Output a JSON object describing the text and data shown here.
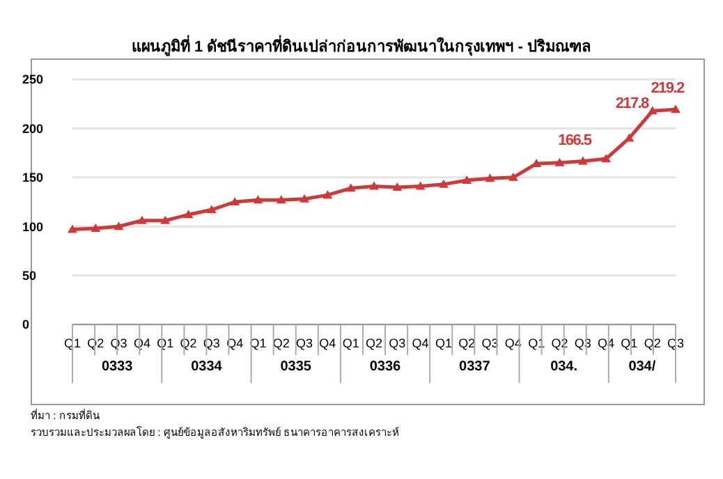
{
  "chart_data": {
    "type": "line",
    "title": "แผนภูมิที่ 1 ดัชนีราคาที่ดินเปล่าก่อนการพัฒนาในกรุงเทพฯ - ปริมณฑล",
    "categories": [
      "Q1",
      "Q2",
      "Q3",
      "Q4",
      "Q1",
      "Q2",
      "Q3",
      "Q4",
      "Q1",
      "Q2",
      "Q3",
      "Q4",
      "Q1",
      "Q2",
      "Q3",
      "Q4",
      "Q1",
      "Q2",
      "Q3",
      "Q4",
      "Q1",
      "Q2",
      "Q3",
      "Q4",
      "Q1",
      "Q2",
      "Q3"
    ],
    "series": [
      {
        "color": "#cc3b3b",
        "values": [
          97,
          98,
          100,
          106,
          106,
          112,
          117,
          125,
          127,
          127,
          128,
          132,
          139,
          141,
          140,
          141,
          143,
          147,
          149,
          150,
          164,
          165,
          166.5,
          169,
          190,
          217.8,
          219.2
        ],
        "value_labels": [
          null,
          null,
          null,
          null,
          null,
          null,
          null,
          null,
          null,
          null,
          null,
          null,
          null,
          null,
          null,
          null,
          null,
          null,
          null,
          null,
          null,
          null,
          "166.5",
          null,
          null,
          "217.8",
          "219.2"
        ]
      }
    ],
    "ylim": [
      0,
      250
    ],
    "yticks": [
      0,
      50,
      100,
      150,
      200,
      250
    ],
    "grid": "y",
    "marker": "triangle",
    "legend": false,
    "annotations": [
      "0333",
      "0334",
      "0335",
      "0336",
      "0337",
      "034.",
      "034/",
      "ที่มา : กรมที่ดิน",
      "รวบรวมและประมวลผลโดย : ศูนย์ข้อมูลอสังหาริมทรัพย์ ธนาคารอาคารสงเคราะห์"
    ]
  }
}
